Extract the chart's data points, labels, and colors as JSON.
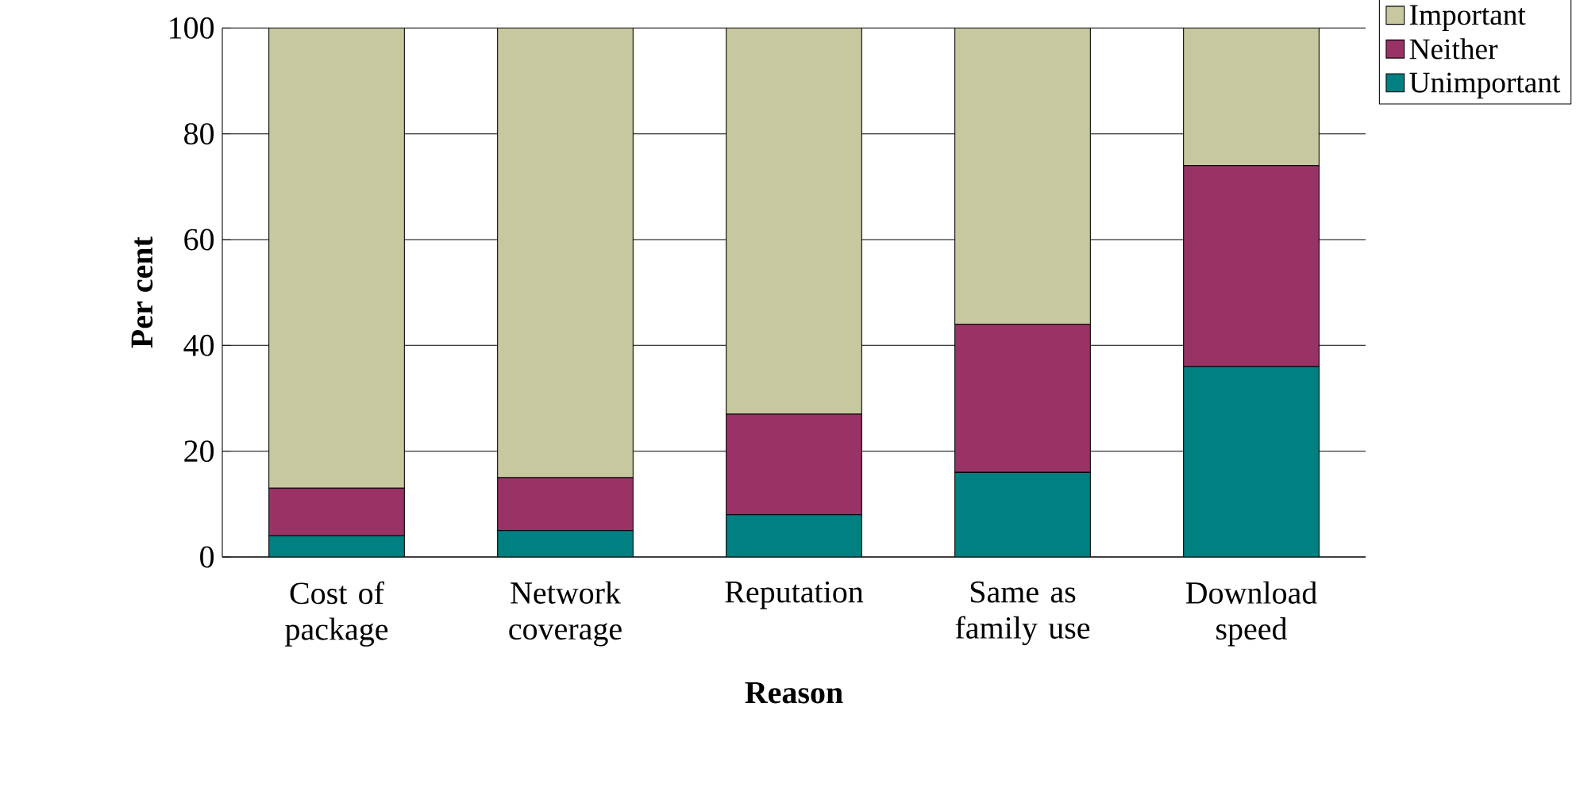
{
  "chart_data": {
    "type": "bar",
    "stacked": true,
    "xlabel": "Reason",
    "ylabel": "Per cent",
    "categories": [
      "Cost of package",
      "Network coverage",
      "Reputation",
      "Same as family use",
      "Download speed"
    ],
    "series": [
      {
        "name": "Unimportant",
        "color": "#008080",
        "values": [
          4,
          5,
          8,
          16,
          36
        ]
      },
      {
        "name": "Neither",
        "color": "#993366",
        "values": [
          9,
          10,
          19,
          28,
          38
        ]
      },
      {
        "name": "Important",
        "color": "#c8c8a0",
        "values": [
          87,
          85,
          73,
          56,
          26
        ]
      }
    ],
    "ylim": [
      0,
      100
    ],
    "yticks": [
      0,
      20,
      40,
      60,
      80,
      100
    ],
    "grid": "y",
    "legend": "top right"
  }
}
